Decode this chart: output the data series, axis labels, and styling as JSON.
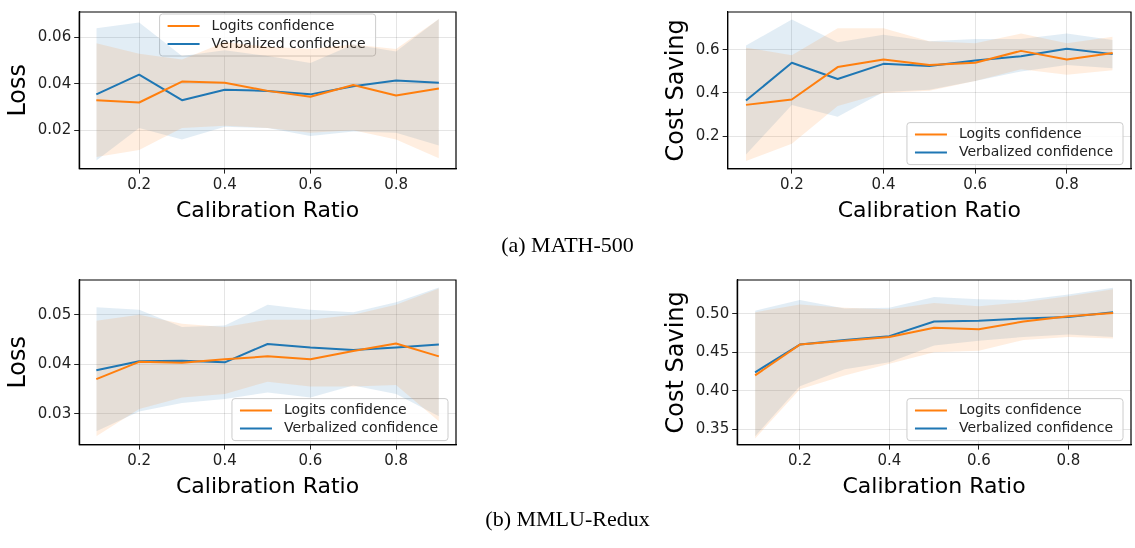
{
  "chart_data": [
    {
      "type": "line",
      "ylabel": "Loss",
      "xlabel": "Calibration Ratio",
      "x": [
        0.1,
        0.2,
        0.3,
        0.4,
        0.5,
        0.6,
        0.7,
        0.8,
        0.9
      ],
      "xlim": [
        0.06,
        0.94
      ],
      "xticks": [
        0.2,
        0.4,
        0.6,
        0.8
      ],
      "ylim": [
        0.0035,
        0.071
      ],
      "yticks": [
        0.02,
        0.04,
        0.06
      ],
      "grid": true,
      "legend": "top",
      "annotations": [
        "(a) MATH-500"
      ],
      "series": [
        {
          "name": "Logits confidence",
          "color": "#ff7f0e",
          "values": [
            0.033,
            0.032,
            0.041,
            0.0405,
            0.037,
            0.0345,
            0.0395,
            0.035,
            0.038
          ],
          "upper": [
            0.0575,
            0.053,
            0.0505,
            0.058,
            0.056,
            0.055,
            0.057,
            0.055,
            0.068
          ],
          "lower": [
            0.0085,
            0.0115,
            0.021,
            0.022,
            0.021,
            0.019,
            0.02,
            0.016,
            0.008
          ]
        },
        {
          "name": "Verbalized confidence",
          "color": "#1f77b4",
          "values": [
            0.0355,
            0.044,
            0.033,
            0.0375,
            0.037,
            0.0355,
            0.039,
            0.0415,
            0.0405
          ],
          "upper": [
            0.064,
            0.0665,
            0.052,
            0.0545,
            0.052,
            0.049,
            0.057,
            0.054,
            0.068
          ],
          "lower": [
            0.007,
            0.021,
            0.016,
            0.0215,
            0.021,
            0.0175,
            0.0195,
            0.019,
            0.0135
          ]
        }
      ]
    },
    {
      "type": "line",
      "ylabel": "Cost Saving",
      "xlabel": "Calibration Ratio",
      "x": [
        0.1,
        0.2,
        0.3,
        0.4,
        0.5,
        0.6,
        0.7,
        0.8,
        0.9
      ],
      "xlim": [
        0.06,
        0.94
      ],
      "xticks": [
        0.2,
        0.4,
        0.6,
        0.8
      ],
      "ylim": [
        0.05,
        0.775
      ],
      "yticks": [
        0.2,
        0.4,
        0.6
      ],
      "grid": true,
      "legend": "bottom right",
      "series": [
        {
          "name": "Logits confidence",
          "color": "#ff7f0e",
          "values": [
            0.345,
            0.37,
            0.52,
            0.555,
            0.53,
            0.54,
            0.595,
            0.555,
            0.585
          ],
          "upper": [
            0.61,
            0.575,
            0.7,
            0.7,
            0.64,
            0.63,
            0.675,
            0.63,
            0.66
          ],
          "lower": [
            0.085,
            0.165,
            0.34,
            0.4,
            0.41,
            0.455,
            0.51,
            0.485,
            0.505
          ]
        },
        {
          "name": "Verbalized confidence",
          "color": "#1f77b4",
          "values": [
            0.365,
            0.54,
            0.465,
            0.535,
            0.525,
            0.55,
            0.57,
            0.605,
            0.58
          ],
          "upper": [
            0.62,
            0.74,
            0.635,
            0.67,
            0.64,
            0.65,
            0.65,
            0.675,
            0.645
          ],
          "lower": [
            0.115,
            0.345,
            0.29,
            0.405,
            0.415,
            0.455,
            0.5,
            0.53,
            0.515
          ]
        }
      ]
    },
    {
      "type": "line",
      "ylabel": "Loss",
      "xlabel": "Calibration Ratio",
      "x": [
        0.1,
        0.2,
        0.3,
        0.4,
        0.5,
        0.6,
        0.7,
        0.8,
        0.9
      ],
      "xlim": [
        0.06,
        0.94
      ],
      "xticks": [
        0.2,
        0.4,
        0.6,
        0.8
      ],
      "ylim": [
        0.0238,
        0.057
      ],
      "yticks": [
        0.03,
        0.04,
        0.05
      ],
      "grid": true,
      "legend": "bottom right",
      "annotations": [
        "(b) MMLU-Redux"
      ],
      "series": [
        {
          "name": "Logits confidence",
          "color": "#ff7f0e",
          "values": [
            0.037,
            0.0405,
            0.0403,
            0.041,
            0.0416,
            0.041,
            0.0427,
            0.0442,
            0.0416
          ],
          "upper": [
            0.0488,
            0.05,
            0.0482,
            0.0475,
            0.049,
            0.049,
            0.05,
            0.052,
            0.0553
          ],
          "lower": [
            0.0255,
            0.031,
            0.0333,
            0.034,
            0.0365,
            0.0355,
            0.0355,
            0.0358,
            0.0285
          ]
        },
        {
          "name": "Verbalized confidence",
          "color": "#1f77b4",
          "values": [
            0.0388,
            0.0406,
            0.0407,
            0.0404,
            0.0441,
            0.0434,
            0.0429,
            0.0434,
            0.044
          ],
          "upper": [
            0.0515,
            0.051,
            0.0475,
            0.0478,
            0.052,
            0.051,
            0.0505,
            0.0525,
            0.0555
          ],
          "lower": [
            0.0265,
            0.0305,
            0.0322,
            0.033,
            0.0343,
            0.0333,
            0.0357,
            0.034,
            0.0295
          ]
        }
      ]
    },
    {
      "type": "line",
      "ylabel": "Cost Saving",
      "xlabel": "Calibration Ratio",
      "x": [
        0.1,
        0.2,
        0.3,
        0.4,
        0.5,
        0.6,
        0.7,
        0.8,
        0.9
      ],
      "xlim": [
        0.06,
        0.94
      ],
      "xticks": [
        0.2,
        0.4,
        0.6,
        0.8
      ],
      "ylim": [
        0.33,
        0.544
      ],
      "yticks": [
        0.35,
        {
          "value": 0.4,
          "label": "0.40"
        },
        0.45,
        {
          "value": 0.5,
          "label": "0.50"
        }
      ],
      "grid": true,
      "legend": "bottom right",
      "series": [
        {
          "name": "Logits confidence",
          "color": "#ff7f0e",
          "values": [
            0.42,
            0.46,
            0.465,
            0.47,
            0.482,
            0.48,
            0.49,
            0.497,
            0.501
          ],
          "upper": [
            0.502,
            0.512,
            0.508,
            0.506,
            0.514,
            0.51,
            0.515,
            0.523,
            0.532
          ],
          "lower": [
            0.338,
            0.402,
            0.42,
            0.435,
            0.45,
            0.452,
            0.466,
            0.47,
            0.468
          ]
        },
        {
          "name": "Verbalized confidence",
          "color": "#1f77b4",
          "values": [
            0.424,
            0.46,
            0.466,
            0.471,
            0.49,
            0.491,
            0.494,
            0.496,
            0.502
          ],
          "upper": [
            0.504,
            0.518,
            0.507,
            0.508,
            0.522,
            0.519,
            0.518,
            0.525,
            0.534
          ],
          "lower": [
            0.341,
            0.406,
            0.428,
            0.437,
            0.459,
            0.465,
            0.47,
            0.473,
            0.47
          ]
        }
      ]
    }
  ]
}
